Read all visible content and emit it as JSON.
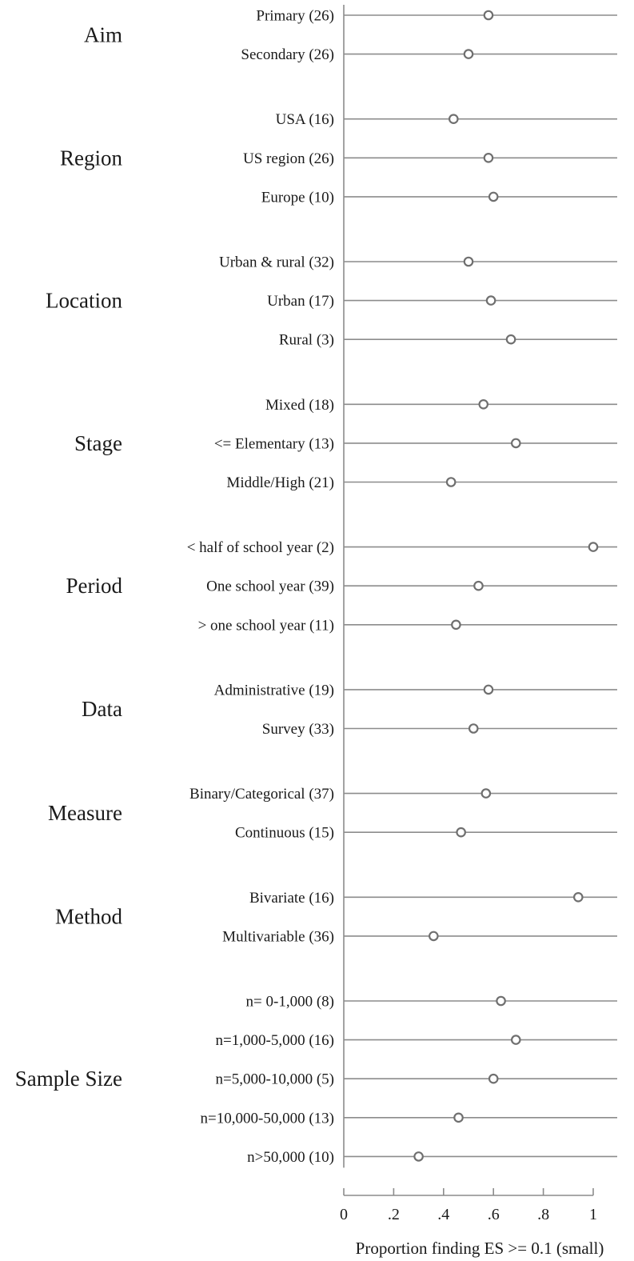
{
  "chart_data": {
    "type": "dot",
    "xlabel": "Proportion finding ES >= 0.1 (small)",
    "xlim": [
      0,
      1
    ],
    "xticks": [
      {
        "value": 0,
        "label": "0"
      },
      {
        "value": 0.2,
        "label": ".2"
      },
      {
        "value": 0.4,
        "label": ".4"
      },
      {
        "value": 0.6,
        "label": ".6"
      },
      {
        "value": 0.8,
        "label": ".8"
      },
      {
        "value": 1,
        "label": "1"
      }
    ],
    "groups": [
      {
        "name": "Aim",
        "rows": [
          {
            "label": "Primary (26)",
            "value": 0.58
          },
          {
            "label": "Secondary (26)",
            "value": 0.5
          }
        ]
      },
      {
        "name": "Region",
        "rows": [
          {
            "label": "USA (16)",
            "value": 0.44
          },
          {
            "label": "US region (26)",
            "value": 0.58
          },
          {
            "label": "Europe (10)",
            "value": 0.6
          }
        ]
      },
      {
        "name": "Location",
        "rows": [
          {
            "label": "Urban & rural (32)",
            "value": 0.5
          },
          {
            "label": "Urban (17)",
            "value": 0.59
          },
          {
            "label": "Rural (3)",
            "value": 0.67
          }
        ]
      },
      {
        "name": "Stage",
        "rows": [
          {
            "label": "Mixed (18)",
            "value": 0.56
          },
          {
            "label": "<= Elementary (13)",
            "value": 0.69
          },
          {
            "label": "Middle/High (21)",
            "value": 0.43
          }
        ]
      },
      {
        "name": "Period",
        "rows": [
          {
            "label": "<  half of school year (2)",
            "value": 1.0
          },
          {
            "label": "One school year (39)",
            "value": 0.54
          },
          {
            "label": "> one school year (11)",
            "value": 0.45
          }
        ]
      },
      {
        "name": "Data",
        "rows": [
          {
            "label": "Administrative (19)",
            "value": 0.58
          },
          {
            "label": "Survey (33)",
            "value": 0.52
          }
        ]
      },
      {
        "name": "Measure",
        "rows": [
          {
            "label": "Binary/Categorical (37)",
            "value": 0.57
          },
          {
            "label": "Continuous (15)",
            "value": 0.47
          }
        ]
      },
      {
        "name": "Method",
        "rows": [
          {
            "label": "Bivariate (16)",
            "value": 0.94
          },
          {
            "label": "Multivariable (36)",
            "value": 0.36
          }
        ]
      },
      {
        "name": "Sample Size",
        "rows": [
          {
            "label": "n= 0-1,000 (8)",
            "value": 0.63
          },
          {
            "label": "n=1,000-5,000 (16)",
            "value": 0.69
          },
          {
            "label": "n=5,000-10,000 (5)",
            "value": 0.6
          },
          {
            "label": "n=10,000-50,000 (13)",
            "value": 0.46
          },
          {
            "label": "n>50,000 (10)",
            "value": 0.3
          }
        ]
      }
    ]
  }
}
